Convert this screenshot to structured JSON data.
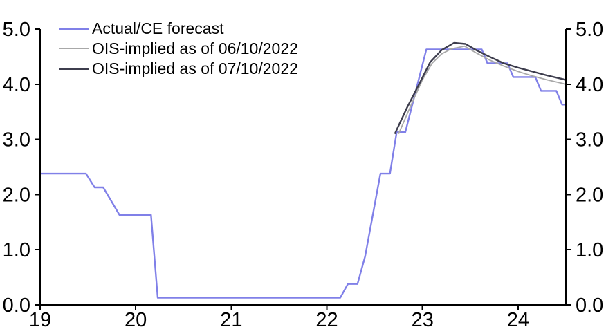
{
  "chart_data": {
    "type": "line",
    "title": "",
    "xlabel": "",
    "ylabel": "",
    "x_range": [
      19,
      24.5
    ],
    "y_range": [
      0,
      5
    ],
    "x_ticks": [
      19,
      20,
      21,
      22,
      23,
      24
    ],
    "x_tick_labels": [
      "19",
      "20",
      "21",
      "22",
      "23",
      "24"
    ],
    "y_ticks": [
      0,
      1,
      2,
      3,
      4,
      5
    ],
    "y_tick_labels": [
      "0.0",
      "1.0",
      "2.0",
      "3.0",
      "4.0",
      "5.0"
    ],
    "dual_y_axis": true,
    "grid": false,
    "legend_position": "top-left",
    "axes_color": "#000000",
    "series": [
      {
        "name": "Actual/CE forecast",
        "color": "#8080e8",
        "width": 2.4,
        "points": [
          [
            19.0,
            2.38
          ],
          [
            19.48,
            2.38
          ],
          [
            19.57,
            2.13
          ],
          [
            19.66,
            2.13
          ],
          [
            19.83,
            1.63
          ],
          [
            20.16,
            1.63
          ],
          [
            20.23,
            0.13
          ],
          [
            22.14,
            0.13
          ],
          [
            22.22,
            0.38
          ],
          [
            22.32,
            0.38
          ],
          [
            22.4,
            0.88
          ],
          [
            22.48,
            1.63
          ],
          [
            22.56,
            2.38
          ],
          [
            22.66,
            2.38
          ],
          [
            22.73,
            3.13
          ],
          [
            22.82,
            3.13
          ],
          [
            23.04,
            4.63
          ],
          [
            23.62,
            4.63
          ],
          [
            23.68,
            4.38
          ],
          [
            23.89,
            4.38
          ],
          [
            23.95,
            4.13
          ],
          [
            24.18,
            4.13
          ],
          [
            24.24,
            3.88
          ],
          [
            24.4,
            3.88
          ],
          [
            24.46,
            3.63
          ],
          [
            24.5,
            3.63
          ]
        ]
      },
      {
        "name": "OIS-implied as of 06/10/2022",
        "color": "#a8a8a8",
        "width": 1.8,
        "points": [
          [
            22.75,
            3.1
          ],
          [
            22.88,
            3.62
          ],
          [
            23.0,
            4.08
          ],
          [
            23.1,
            4.38
          ],
          [
            23.2,
            4.55
          ],
          [
            23.3,
            4.64
          ],
          [
            23.44,
            4.69
          ],
          [
            23.57,
            4.56
          ],
          [
            23.7,
            4.44
          ],
          [
            23.85,
            4.33
          ],
          [
            24.0,
            4.23
          ],
          [
            24.15,
            4.15
          ],
          [
            24.3,
            4.08
          ],
          [
            24.5,
            4.0
          ]
        ]
      },
      {
        "name": "OIS-implied as of 07/10/2022",
        "color": "#3d3d4d",
        "width": 2.4,
        "points": [
          [
            22.71,
            3.1
          ],
          [
            22.84,
            3.58
          ],
          [
            22.97,
            4.02
          ],
          [
            23.08,
            4.4
          ],
          [
            23.2,
            4.62
          ],
          [
            23.33,
            4.75
          ],
          [
            23.45,
            4.73
          ],
          [
            23.57,
            4.61
          ],
          [
            23.7,
            4.5
          ],
          [
            23.85,
            4.38
          ],
          [
            24.0,
            4.3
          ],
          [
            24.15,
            4.23
          ],
          [
            24.3,
            4.16
          ],
          [
            24.4,
            4.12
          ],
          [
            24.5,
            4.08
          ]
        ]
      }
    ]
  }
}
